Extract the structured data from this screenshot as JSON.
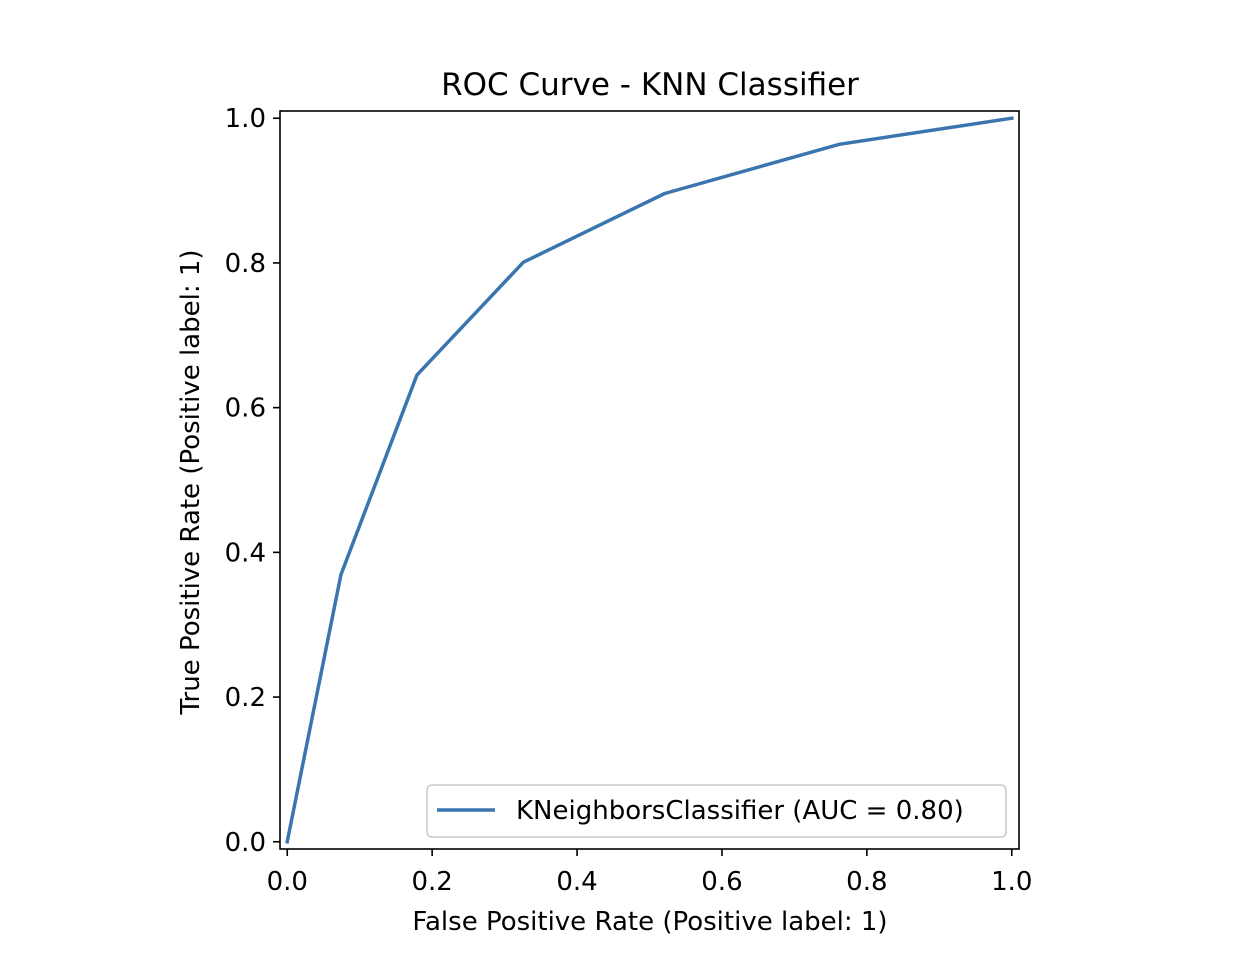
{
  "chart_data": {
    "type": "line",
    "title": "ROC Curve - KNN Classifier",
    "xlabel": "False Positive Rate (Positive label: 1)",
    "ylabel": "True Positive Rate (Positive label: 1)",
    "xlim": [
      -0.01,
      1.01
    ],
    "ylim": [
      -0.01,
      1.01
    ],
    "xticks": [
      0.0,
      0.2,
      0.4,
      0.6,
      0.8,
      1.0
    ],
    "xtick_labels": [
      "0.0",
      "0.2",
      "0.4",
      "0.6",
      "0.8",
      "1.0"
    ],
    "yticks": [
      0.0,
      0.2,
      0.4,
      0.6,
      0.8,
      1.0
    ],
    "ytick_labels": [
      "0.0",
      "0.2",
      "0.4",
      "0.6",
      "0.8",
      "1.0"
    ],
    "grid": false,
    "legend_position": "lower-right",
    "series": [
      {
        "name": "KNeighborsClassifier (AUC = 0.80)",
        "color": "#3b75af",
        "x": [
          0.0,
          0.074,
          0.179,
          0.326,
          0.521,
          0.762,
          1.0
        ],
        "y": [
          0.0,
          0.369,
          0.645,
          0.801,
          0.896,
          0.964,
          1.0
        ]
      }
    ]
  }
}
